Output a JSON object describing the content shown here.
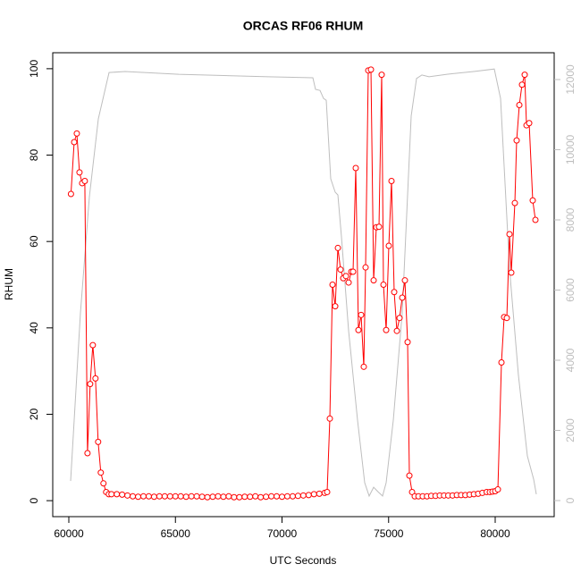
{
  "chart_data": {
    "type": "line",
    "title": "ORCAS RF06 RHUM",
    "x_label": "UTC Seconds",
    "y_label": "RHUM",
    "xlim": [
      59245,
      82767
    ],
    "ylim": [
      -3.7,
      103.7
    ],
    "y2lim": [
      -458,
      12764
    ],
    "xticks": [
      60000,
      65000,
      70000,
      75000,
      80000
    ],
    "yticks": [
      0,
      20,
      40,
      60,
      80,
      100
    ],
    "y2ticks": [
      0,
      2000,
      4000,
      6000,
      8000,
      10000,
      12000
    ],
    "y2_color": "#bebebe",
    "series": [
      {
        "color": "#ff0000",
        "markers": true,
        "x": [
          60100,
          60250,
          60375,
          60500,
          60625,
          60750,
          60875,
          61000,
          61125,
          61250,
          61375,
          61500,
          61625,
          61750,
          61875,
          62000,
          62250,
          62500,
          62750,
          63000,
          63250,
          63500,
          63750,
          64000,
          64250,
          64500,
          64750,
          65000,
          65250,
          65500,
          65750,
          66000,
          66250,
          66500,
          66750,
          67000,
          67250,
          67500,
          67750,
          68000,
          68250,
          68500,
          68750,
          69000,
          69250,
          69500,
          69750,
          70000,
          70250,
          70500,
          70750,
          71000,
          71250,
          71500,
          71750,
          72000,
          72117,
          72243,
          72369,
          72495,
          72621,
          72746,
          72872,
          72998,
          73124,
          73250,
          73333,
          73459,
          73585,
          73711,
          73836,
          73920,
          74046,
          74172,
          74298,
          74423,
          74549,
          74675,
          74759,
          74885,
          75010,
          75136,
          75262,
          75388,
          75514,
          75639,
          75765,
          75891,
          75975,
          76101,
          76226,
          76400,
          76600,
          76800,
          77000,
          77200,
          77400,
          77600,
          77800,
          78000,
          78200,
          78400,
          78600,
          78800,
          79000,
          79200,
          79400,
          79600,
          79748,
          79874,
          80000,
          80126,
          80294,
          80419,
          80545,
          80671,
          80755,
          80922,
          81006,
          81132,
          81258,
          81384,
          81468,
          81594,
          81761,
          81887
        ],
        "values": [
          71,
          83,
          85,
          76,
          73.5,
          74,
          11,
          27,
          36,
          28.3,
          13.6,
          6.5,
          4,
          2,
          1.5,
          1.5,
          1.5,
          1.4,
          1.2,
          1.0,
          0.9,
          1.0,
          1.0,
          0.9,
          1.0,
          1.0,
          1.0,
          1.0,
          1.0,
          0.9,
          1.0,
          1.0,
          0.9,
          0.8,
          0.9,
          1.0,
          0.9,
          1.0,
          0.8,
          0.8,
          0.9,
          0.9,
          1.0,
          0.8,
          0.9,
          1.0,
          1.0,
          0.9,
          1.0,
          1.0,
          1.1,
          1.2,
          1.3,
          1.5,
          1.6,
          1.8,
          2,
          19,
          50,
          45,
          58.5,
          53.5,
          51.5,
          52,
          50.5,
          53,
          53,
          77,
          39.5,
          43,
          31,
          54,
          99.6,
          99.8,
          51,
          63.3,
          63.4,
          98.6,
          50,
          39.5,
          59,
          74,
          48.3,
          39.3,
          42.3,
          47,
          51,
          36.7,
          5.8,
          2,
          1,
          1,
          1,
          1,
          1.1,
          1.1,
          1.2,
          1.2,
          1.2,
          1.2,
          1.3,
          1.3,
          1.3,
          1.4,
          1.5,
          1.6,
          1.8,
          2.0,
          2,
          2.1,
          2.2,
          2.6,
          32,
          42.5,
          42.3,
          61.7,
          52.8,
          68.9,
          83.4,
          91.6,
          96.3,
          98.6,
          86.9,
          87.4,
          69.5,
          65
        ]
      },
      {
        "color": "#bebebe",
        "axis": "y2",
        "markers": false,
        "x": [
          60084,
          60545,
          60964,
          61384,
          61887,
          62641,
          65157,
          69350,
          71447,
          71572,
          71782,
          71950,
          72075,
          72285,
          72495,
          72621,
          72788,
          73124,
          73543,
          73878,
          74088,
          74298,
          74507,
          74717,
          74885,
          75220,
          75639,
          76059,
          76310,
          76562,
          76897,
          77736,
          78994,
          79958,
          80252,
          80671,
          81090,
          81509,
          81803,
          81929
        ],
        "values": [
          560,
          5350,
          8660,
          10880,
          12200,
          12230,
          12150,
          12080,
          12050,
          11720,
          11690,
          11460,
          11410,
          9170,
          8790,
          8710,
          7520,
          4840,
          2290,
          510,
          130,
          380,
          250,
          130,
          510,
          2290,
          5350,
          10960,
          12030,
          12130,
          12080,
          12150,
          12230,
          12300,
          11460,
          6620,
          3570,
          1270,
          610,
          180
        ]
      }
    ]
  }
}
